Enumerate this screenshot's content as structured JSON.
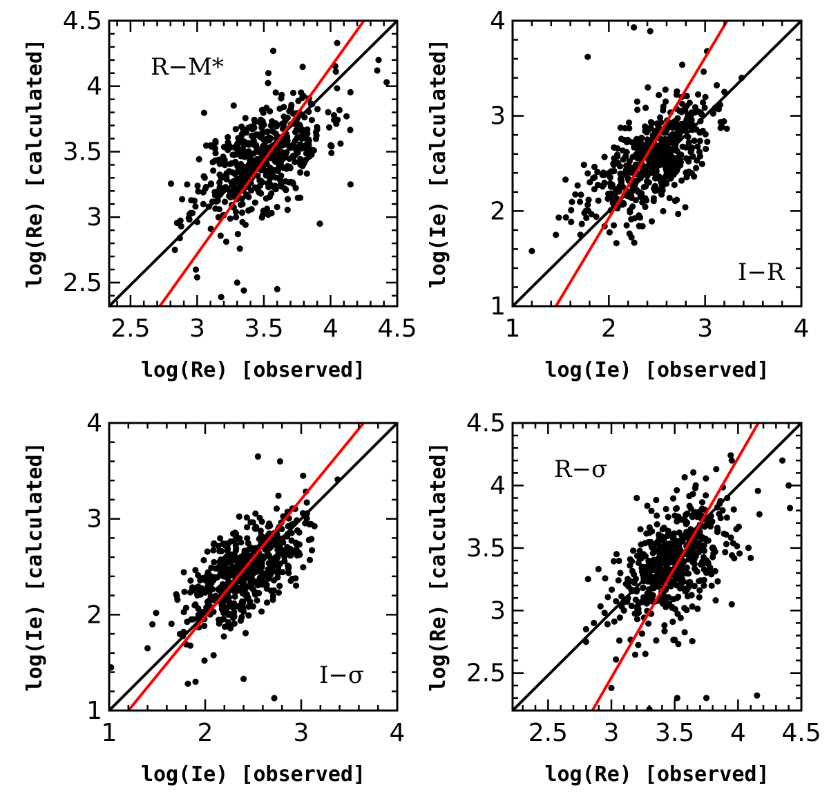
{
  "chart_data": [
    {
      "type": "scatter",
      "panel_label": "R−M*",
      "xlabel": "log(Re) [observed]",
      "ylabel": "log(Re) [calculated]",
      "xlim": [
        2.34,
        4.5
      ],
      "ylim": [
        2.32,
        4.5
      ],
      "xticks": [
        "2.5",
        "3",
        "3.5",
        "4",
        "4.5"
      ],
      "yticks": [
        "2.5",
        "3",
        "3.5",
        "4",
        "4.5"
      ],
      "fit_lines": [
        {
          "color": "#000000",
          "points": [
            [
              2.34,
              2.32
            ],
            [
              4.5,
              4.5
            ]
          ]
        },
        {
          "color": "#ff0000",
          "points": [
            [
              2.72,
              2.32
            ],
            [
              4.25,
              4.5
            ]
          ]
        }
      ],
      "cloud": {
        "center": [
          3.48,
          3.45
        ],
        "sd": [
          0.24,
          0.24
        ],
        "corr": 0.55,
        "n": 520,
        "seed": 11
      },
      "extra_points": [
        [
          2.88,
          2.93
        ],
        [
          2.87,
          2.84
        ],
        [
          2.99,
          2.6
        ],
        [
          3.0,
          2.54
        ],
        [
          3.18,
          2.39
        ],
        [
          3.3,
          2.5
        ],
        [
          3.35,
          2.44
        ],
        [
          3.6,
          2.45
        ],
        [
          3.92,
          2.95
        ],
        [
          4.35,
          4.12
        ],
        [
          4.42,
          4.03
        ],
        [
          4.36,
          4.2
        ],
        [
          4.15,
          3.25
        ],
        [
          4.12,
          3.77
        ],
        [
          3.57,
          4.27
        ],
        [
          4.05,
          4.33
        ]
      ]
    },
    {
      "type": "scatter",
      "panel_label": "I−R",
      "xlabel": "log(Ie) [observed]",
      "ylabel": "log(Ie) [calculated]",
      "xlim": [
        1,
        4
      ],
      "ylim": [
        1,
        4
      ],
      "xticks": [
        "1",
        "2",
        "3",
        "4"
      ],
      "yticks": [
        "1",
        "2",
        "3",
        "4"
      ],
      "fit_lines": [
        {
          "color": "#000000",
          "points": [
            [
              1,
              1
            ],
            [
              4,
              4
            ]
          ]
        },
        {
          "color": "#ff0000",
          "points": [
            [
              1.45,
              1
            ],
            [
              3.23,
              4
            ]
          ]
        }
      ],
      "cloud": {
        "center": [
          2.42,
          2.52
        ],
        "sd": [
          0.32,
          0.32
        ],
        "corr": 0.6,
        "n": 520,
        "seed": 23
      },
      "extra_points": [
        [
          1.2,
          1.58
        ],
        [
          1.45,
          1.75
        ],
        [
          1.55,
          2.33
        ],
        [
          1.78,
          3.62
        ],
        [
          2.26,
          3.93
        ],
        [
          2.43,
          3.89
        ],
        [
          3.38,
          3.4
        ],
        [
          3.02,
          3.68
        ],
        [
          2.72,
          1.97
        ],
        [
          2.35,
          1.84
        ],
        [
          1.85,
          2.23
        ]
      ]
    },
    {
      "type": "scatter",
      "panel_label": "I−σ",
      "xlabel": "log(Ie) [observed]",
      "ylabel": "log(Ie) [calculated]",
      "xlim": [
        1,
        4
      ],
      "ylim": [
        1,
        4
      ],
      "xticks": [
        "1",
        "2",
        "3",
        "4"
      ],
      "yticks": [
        "1",
        "2",
        "3",
        "4"
      ],
      "fit_lines": [
        {
          "color": "#000000",
          "points": [
            [
              1,
              1
            ],
            [
              4,
              4
            ]
          ]
        },
        {
          "color": "#ff0000",
          "points": [
            [
              1.2,
              1
            ],
            [
              3.65,
              4
            ]
          ]
        }
      ],
      "cloud": {
        "center": [
          2.42,
          2.48
        ],
        "sd": [
          0.3,
          0.3
        ],
        "corr": 0.6,
        "n": 520,
        "seed": 37
      },
      "extra_points": [
        [
          1.02,
          1.45
        ],
        [
          1.4,
          1.65
        ],
        [
          1.45,
          1.9
        ],
        [
          1.82,
          1.28
        ],
        [
          1.9,
          1.3
        ],
        [
          2.4,
          1.33
        ],
        [
          2.72,
          1.13
        ],
        [
          2.55,
          3.65
        ],
        [
          2.78,
          3.6
        ],
        [
          3.38,
          3.41
        ],
        [
          3.02,
          3.45
        ],
        [
          2.95,
          2.68
        ]
      ]
    },
    {
      "type": "scatter",
      "panel_label": "R−σ",
      "xlabel": "log(Re) [observed]",
      "ylabel": "log(Re) [calculated]",
      "xlim": [
        2.22,
        4.5
      ],
      "ylim": [
        2.2,
        4.5
      ],
      "xticks": [
        "2.5",
        "3",
        "3.5",
        "4",
        "4.5"
      ],
      "yticks": [
        "2.5",
        "3",
        "3.5",
        "4",
        "4.5"
      ],
      "fit_lines": [
        {
          "color": "#000000",
          "points": [
            [
              2.22,
              2.2
            ],
            [
              4.5,
              4.5
            ]
          ]
        },
        {
          "color": "#ff0000",
          "points": [
            [
              2.85,
              2.2
            ],
            [
              4.16,
              4.5
            ]
          ]
        }
      ],
      "cloud": {
        "center": [
          3.5,
          3.38
        ],
        "sd": [
          0.24,
          0.27
        ],
        "corr": 0.5,
        "n": 520,
        "seed": 53
      },
      "extra_points": [
        [
          2.8,
          2.85
        ],
        [
          2.8,
          2.75
        ],
        [
          3.0,
          2.38
        ],
        [
          3.3,
          2.21
        ],
        [
          3.52,
          2.3
        ],
        [
          3.75,
          2.3
        ],
        [
          4.15,
          2.32
        ],
        [
          4.4,
          4.0
        ],
        [
          4.41,
          3.82
        ],
        [
          4.35,
          4.2
        ],
        [
          3.95,
          3.05
        ],
        [
          4.1,
          3.42
        ],
        [
          3.95,
          4.2
        ],
        [
          3.2,
          3.9
        ]
      ]
    }
  ]
}
